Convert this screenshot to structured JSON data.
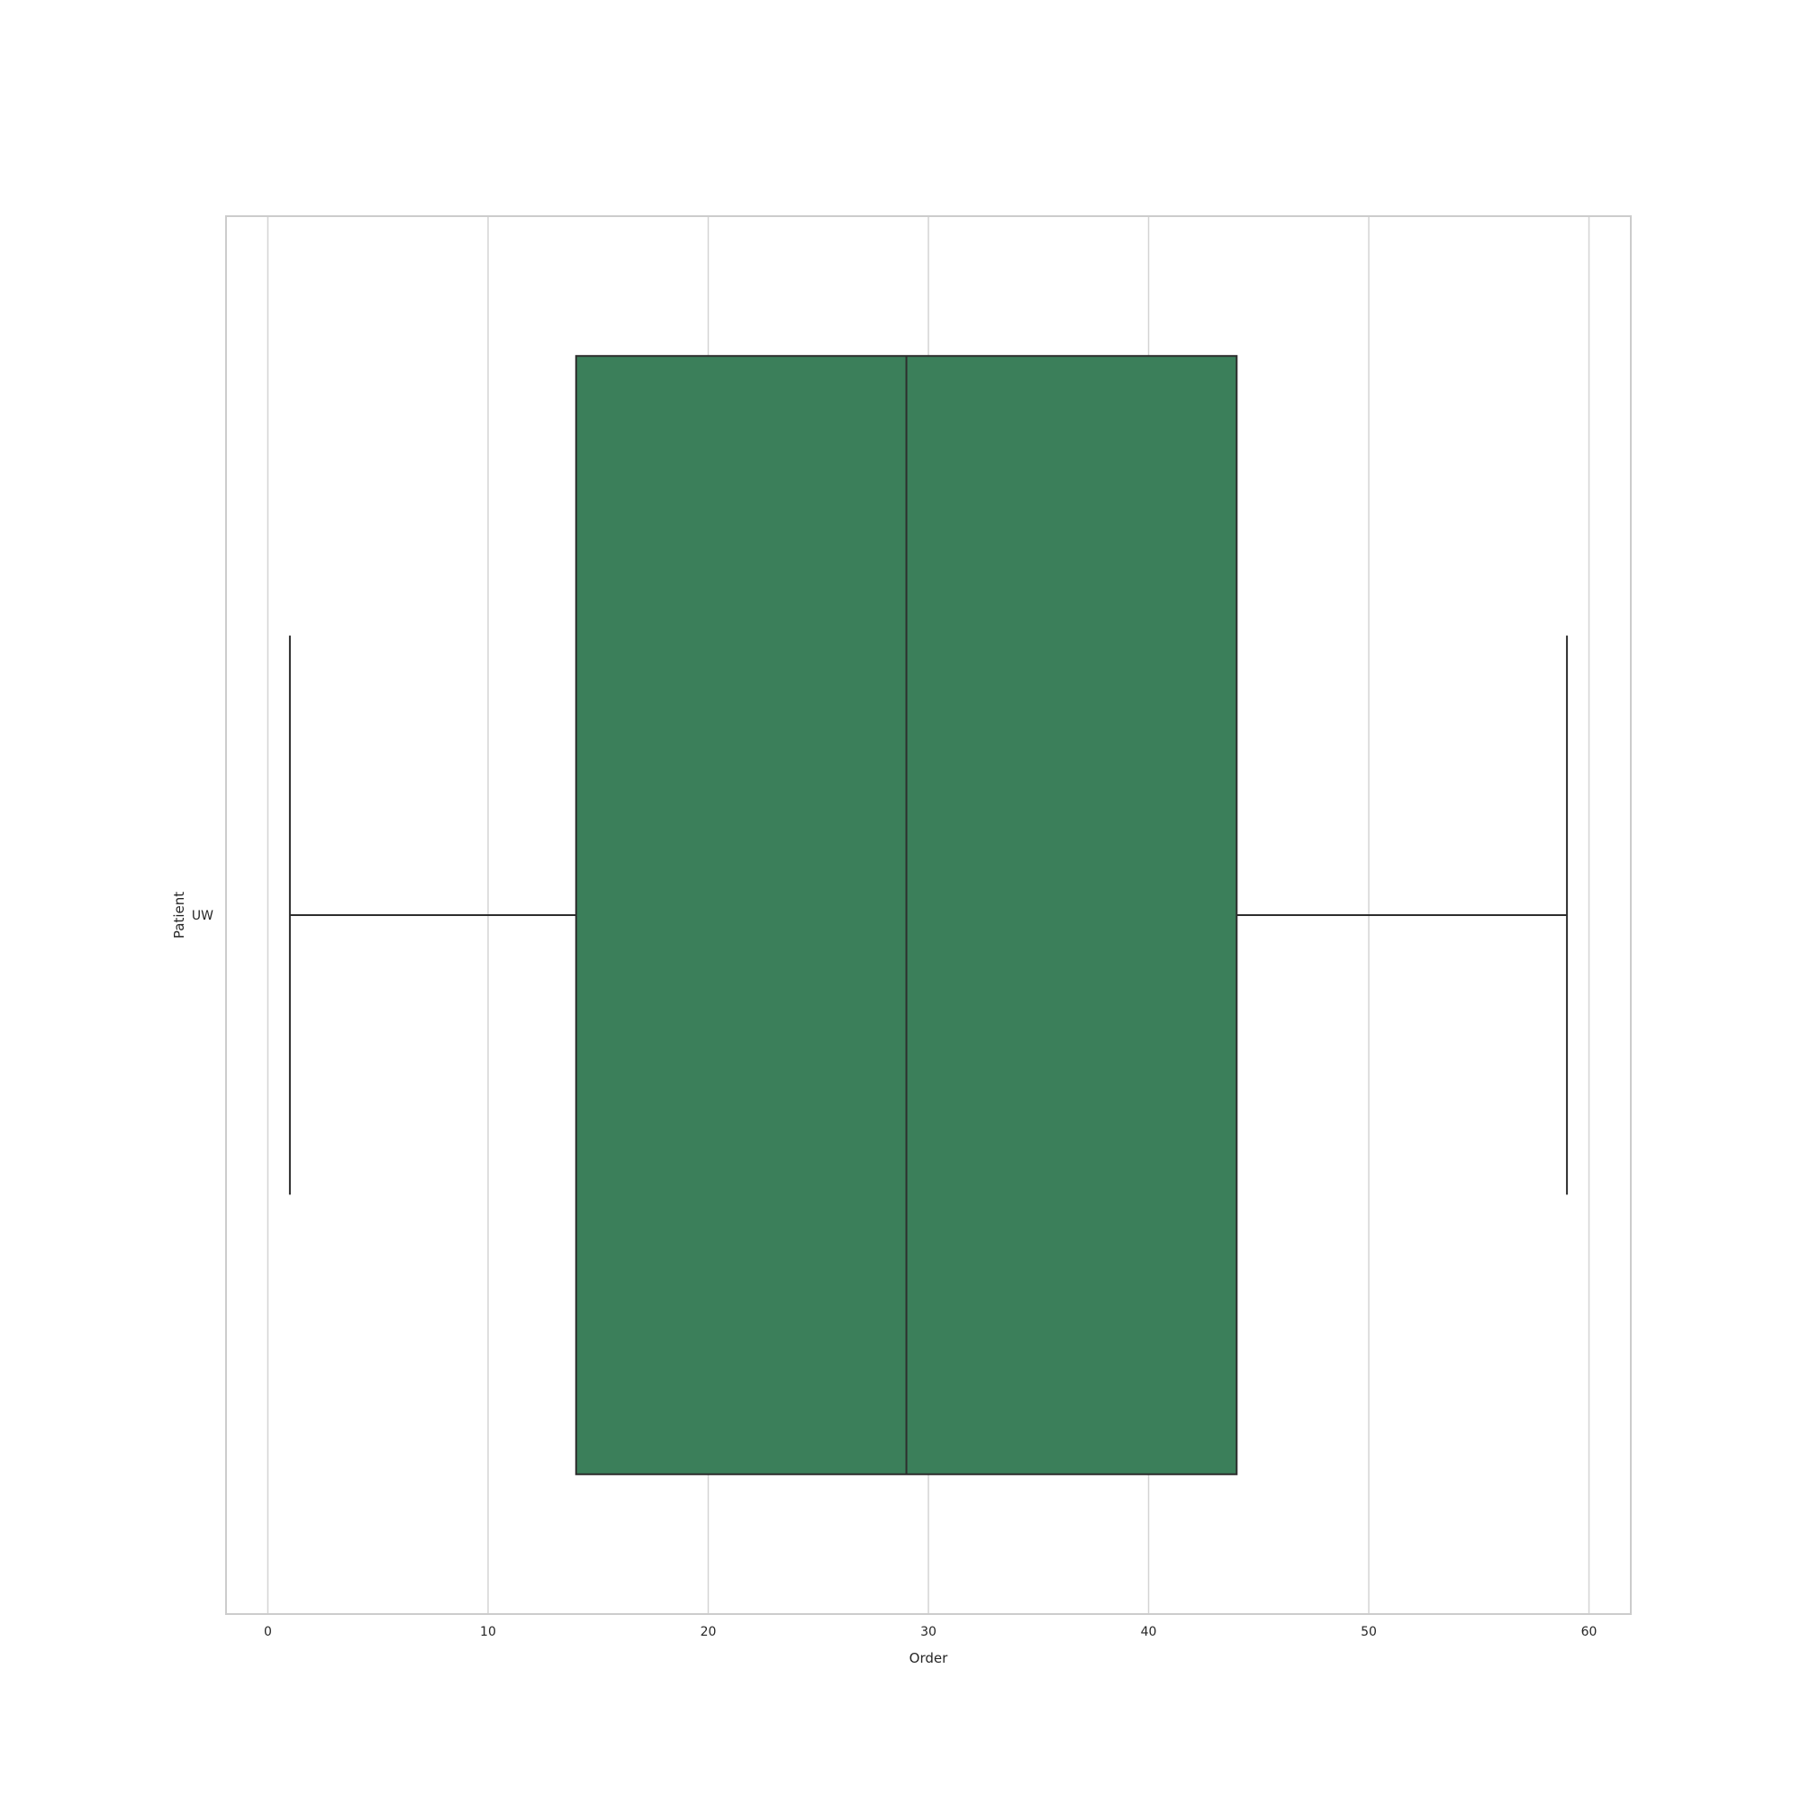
{
  "chart_data": {
    "type": "boxplot",
    "orientation": "horizontal",
    "title": "",
    "xlabel": "Order",
    "ylabel": "Patient",
    "xlim": [
      -1.9,
      61.9
    ],
    "x_ticks": [
      0,
      10,
      20,
      30,
      40,
      50,
      60
    ],
    "grid": {
      "x": true,
      "y": false
    },
    "categories": [
      "UW"
    ],
    "boxes": [
      {
        "category": "UW",
        "whisker_low": 1,
        "q1": 14,
        "median": 29,
        "q3": 44,
        "whisker_high": 59,
        "color": "#3b7f5a"
      }
    ],
    "colors": {
      "grid": "#d4d4d4",
      "spine": "#cccccc",
      "line": "#2d2d2d",
      "text": "#262626"
    }
  }
}
